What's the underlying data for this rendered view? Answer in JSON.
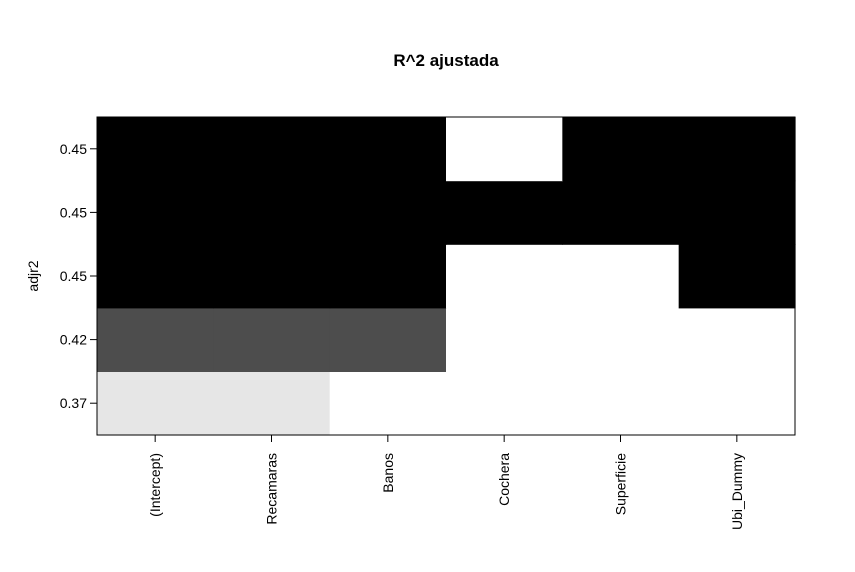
{
  "chart_data": {
    "type": "heatmap",
    "title": "R^2 ajustada",
    "ylabel": "adjr2",
    "xlabel": "",
    "x_categories": [
      "(Intercept)",
      "Recamaras",
      "Banos",
      "Cochera",
      "Superficie",
      "Ubi_Dummy"
    ],
    "y_categories": [
      "0.37",
      "0.42",
      "0.45",
      "0.45",
      "0.45"
    ],
    "rows": [
      {
        "adjr2": "0.37",
        "included": [
          1,
          1,
          0,
          0,
          0,
          0
        ],
        "fill": "#e6e6e6"
      },
      {
        "adjr2": "0.42",
        "included": [
          1,
          1,
          1,
          0,
          0,
          0
        ],
        "fill": "#4d4d4d"
      },
      {
        "adjr2": "0.45",
        "included": [
          1,
          1,
          1,
          0,
          0,
          1
        ],
        "fill": "#000000"
      },
      {
        "adjr2": "0.45",
        "included": [
          1,
          1,
          1,
          1,
          1,
          1
        ],
        "fill": "#000000"
      },
      {
        "adjr2": "0.45",
        "included": [
          1,
          1,
          1,
          0,
          1,
          1
        ],
        "fill": "#000000"
      }
    ],
    "excluded_fill": "#ffffff",
    "legend": "none",
    "grid": false
  }
}
